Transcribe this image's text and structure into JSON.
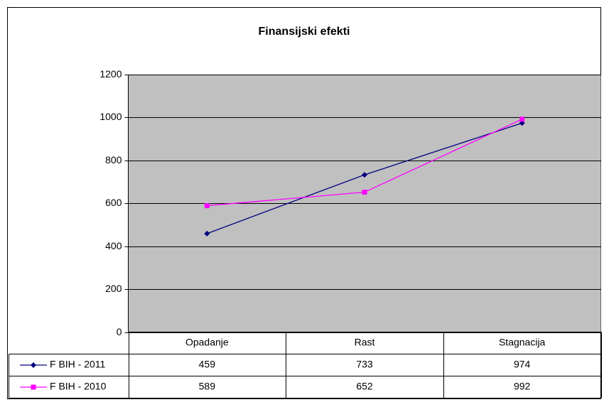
{
  "chart_data": {
    "type": "line",
    "title": "Finansijski efekti",
    "categories": [
      "Opadanje",
      "Rast",
      "Stagnacija"
    ],
    "series": [
      {
        "name": "F BIH - 2011",
        "color": "#000080",
        "marker": "diamond",
        "values": [
          459,
          733,
          974
        ]
      },
      {
        "name": "F BIH - 2010",
        "color": "#ff00ff",
        "marker": "square",
        "values": [
          589,
          652,
          992
        ]
      }
    ],
    "ylim": [
      0,
      1200
    ],
    "yticks": [
      0,
      200,
      400,
      600,
      800,
      1000,
      1200
    ],
    "grid": true,
    "plot_background": "#c0c0c0",
    "data_table": true
  }
}
